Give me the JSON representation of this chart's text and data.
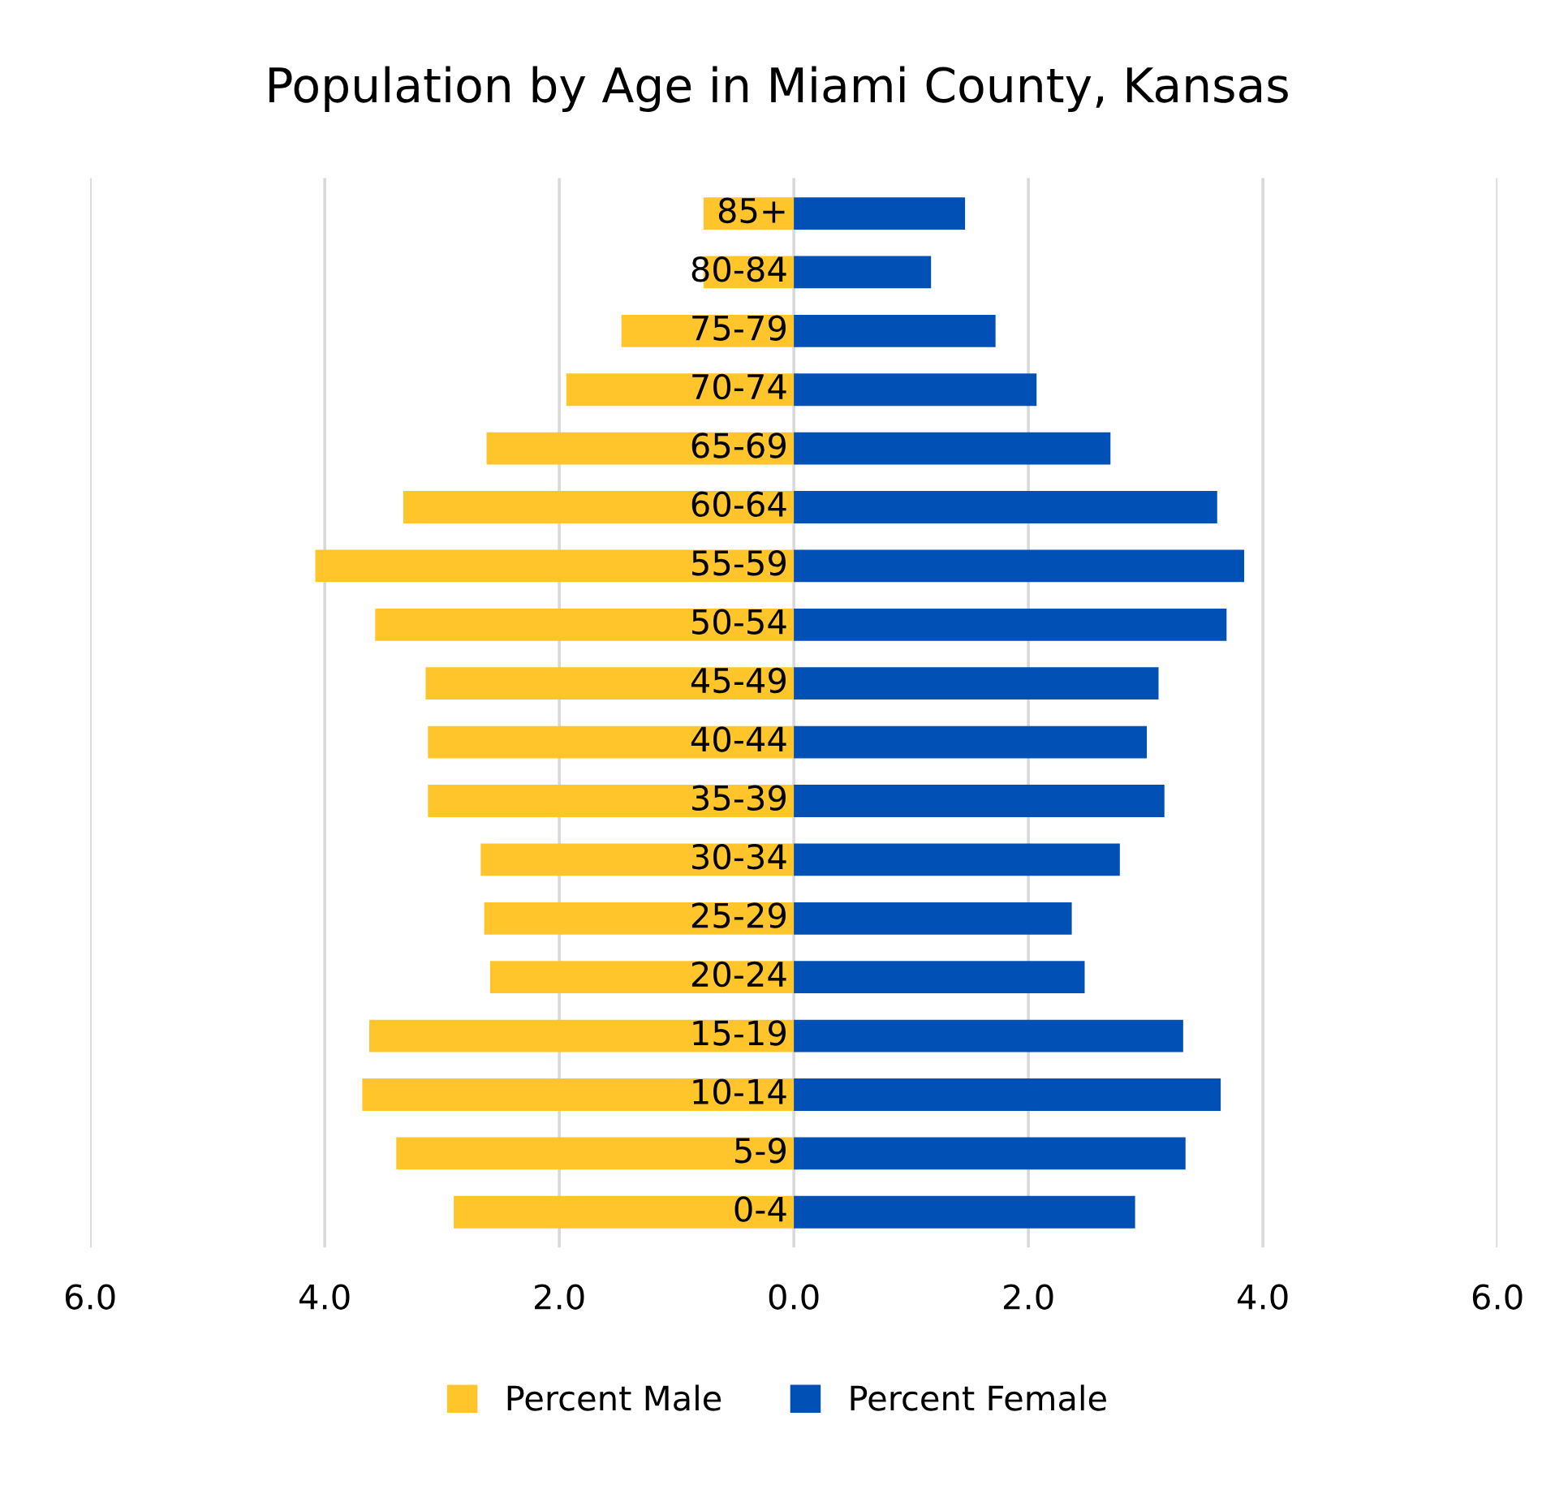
{
  "chart_data": {
    "type": "bar",
    "orientation": "horizontal",
    "title": "Population by Age in Miami County, Kansas",
    "categories": [
      "85+",
      "80-84",
      "75-79",
      "70-74",
      "65-69",
      "60-64",
      "55-59",
      "50-54",
      "45-49",
      "40-44",
      "35-39",
      "30-34",
      "25-29",
      "20-24",
      "15-19",
      "10-14",
      "5-9",
      "0-4"
    ],
    "series": [
      {
        "name": "Percent Male",
        "color": "#ffc52b",
        "values": [
          -0.77,
          -0.77,
          -1.47,
          -1.94,
          -2.62,
          -3.33,
          -4.08,
          -3.57,
          -3.14,
          -3.12,
          -3.12,
          -2.67,
          -2.64,
          -2.59,
          -3.62,
          -3.68,
          -3.39,
          -2.9
        ]
      },
      {
        "name": "Percent Female",
        "color": "#0050b5",
        "values": [
          1.46,
          1.17,
          1.72,
          2.07,
          2.7,
          3.61,
          3.84,
          3.69,
          3.11,
          3.01,
          3.16,
          2.78,
          2.37,
          2.48,
          3.32,
          3.64,
          3.34,
          2.91
        ]
      }
    ],
    "xlim": [
      -6,
      6
    ],
    "xticks": [
      {
        "value": -6,
        "label": "6.0"
      },
      {
        "value": -4,
        "label": "4.0"
      },
      {
        "value": -2,
        "label": "2.0"
      },
      {
        "value": 0,
        "label": "0.0"
      },
      {
        "value": 2,
        "label": "2.0"
      },
      {
        "value": 4,
        "label": "4.0"
      },
      {
        "value": 6,
        "label": "6.0"
      }
    ],
    "stacked": true,
    "grid": "x",
    "legend": "bottom"
  }
}
